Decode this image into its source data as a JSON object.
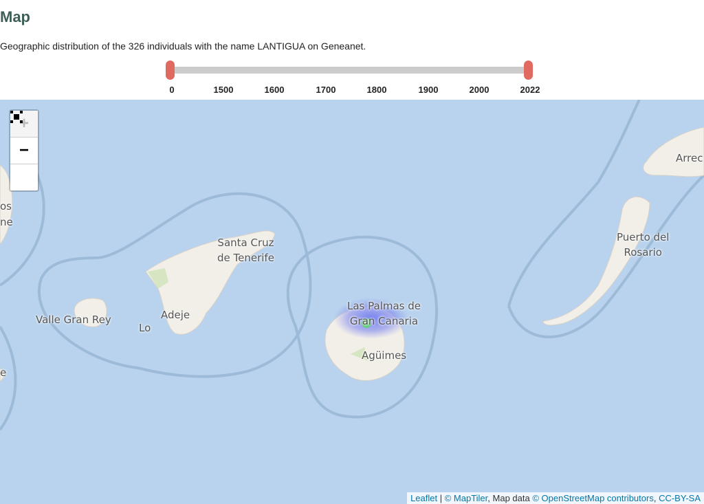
{
  "header": {
    "title": "Map",
    "description": "Geographic distribution of the 326 individuals with the name LANTIGUA on Geneanet."
  },
  "slider": {
    "ticks": [
      "0",
      "1500",
      "1600",
      "1700",
      "1800",
      "1900",
      "2000",
      "2022"
    ],
    "range": [
      0,
      2022
    ],
    "handle_color": "#e06a5f"
  },
  "map": {
    "zoom_in": "+",
    "zoom_out": "−",
    "fullscreen_icon": "fullscreen-icon",
    "labels": {
      "santa_cruz": "Santa Cruz",
      "santa_cruz2": "de Tenerife",
      "valle": "Valle Gran Rey",
      "lo": "Lo",
      "adeje": "Adeje",
      "las_palmas": "Las Palmas de",
      "las_palmas2": "Gran Canaria",
      "aguimes": "Agüimes",
      "puerto": "Puerto del",
      "puerto2": "Rosario",
      "arrecife": "Arreci",
      "os": "os",
      "ne": "ne",
      "e": "e"
    },
    "water_color": "#b9d3ee",
    "land_color": "#f2efe9"
  },
  "attribution": {
    "leaflet": "Leaflet",
    "sep": " | ",
    "maptiler": "© MapTiler",
    "mapdata": ", Map data ",
    "osm": "© OpenStreetMap contributors",
    "comma": ", ",
    "license": "CC-BY-SA"
  }
}
